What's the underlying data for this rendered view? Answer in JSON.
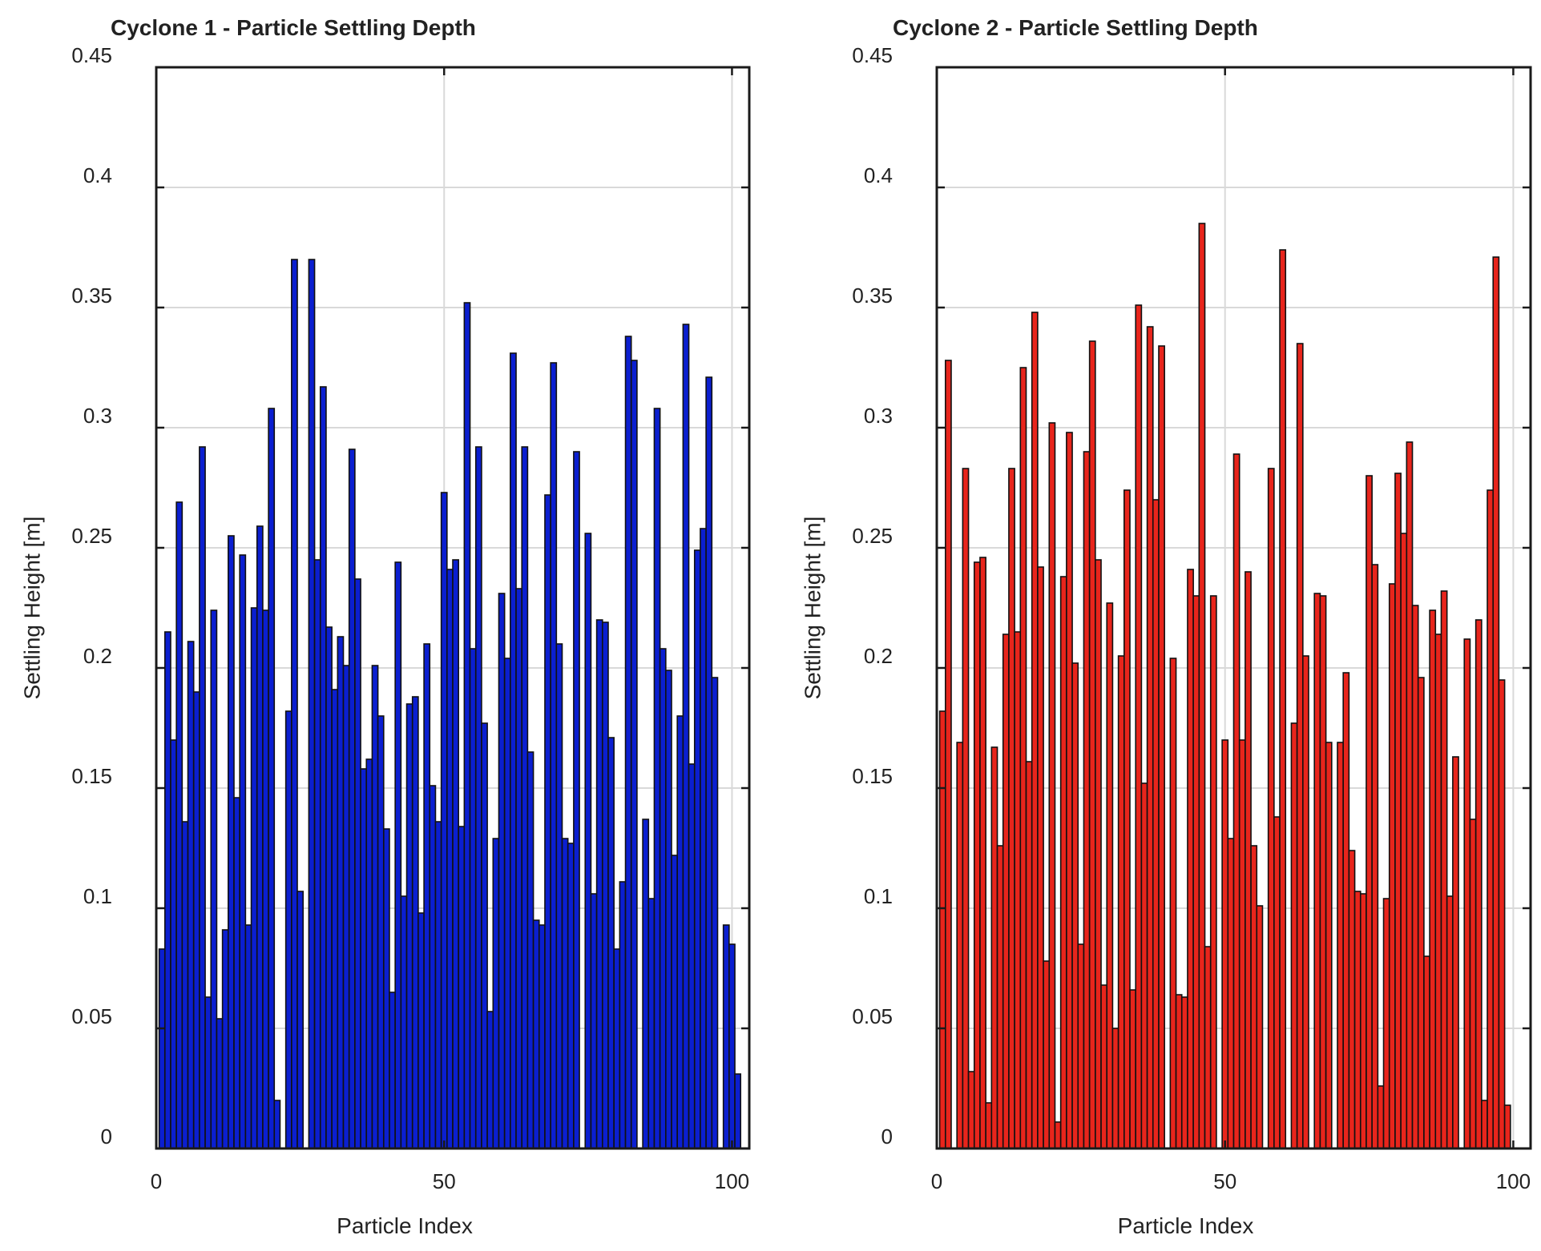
{
  "chart_data": [
    {
      "type": "bar",
      "title": "Cyclone 1 - Particle Settling Depth",
      "xlabel": "Particle Index",
      "ylabel": "Settling Height [m]",
      "xlim": [
        0,
        103
      ],
      "ylim": [
        0,
        0.45
      ],
      "xticks": [
        0,
        50,
        100
      ],
      "xtick_labels": [
        "0",
        "50",
        "100"
      ],
      "yticks": [
        0,
        0.05,
        0.1,
        0.15,
        0.2,
        0.25,
        0.3,
        0.35,
        0.4,
        0.45
      ],
      "ytick_labels": [
        "0",
        "0.05",
        "0.1",
        "0.15",
        "0.2",
        "0.25",
        "0.3",
        "0.35",
        "0.4",
        "0.45"
      ],
      "grid": true,
      "bar_color": "#0b1fd0",
      "edge_color": "#111111",
      "categories": [
        1,
        2,
        3,
        4,
        5,
        6,
        7,
        8,
        9,
        10,
        11,
        12,
        13,
        14,
        15,
        16,
        17,
        18,
        19,
        20,
        21,
        22,
        23,
        24,
        25,
        26,
        27,
        28,
        29,
        30,
        31,
        32,
        33,
        34,
        35,
        36,
        37,
        38,
        39,
        40,
        41,
        42,
        43,
        44,
        45,
        46,
        47,
        48,
        49,
        50,
        51,
        52,
        53,
        54,
        55,
        56,
        57,
        58,
        59,
        60,
        61,
        62,
        63,
        64,
        65,
        66,
        67,
        68,
        69,
        70,
        71,
        72,
        73,
        74,
        75,
        76,
        77,
        78,
        79,
        80,
        81,
        82,
        83,
        84,
        85,
        86,
        87,
        88,
        89,
        90,
        91,
        92,
        93,
        94,
        95,
        96,
        97,
        98,
        99,
        100,
        101,
        102
      ],
      "values": [
        0.083,
        0.215,
        0.17,
        0.269,
        0.136,
        0.211,
        0.19,
        0.292,
        0.063,
        0.224,
        0.054,
        0.091,
        0.255,
        0.146,
        0.247,
        0.093,
        0.225,
        0.259,
        0.224,
        0.308,
        0.02,
        0.0,
        0.182,
        0.37,
        0.107,
        0.0,
        0.37,
        0.245,
        0.317,
        0.217,
        0.191,
        0.213,
        0.201,
        0.291,
        0.237,
        0.158,
        0.162,
        0.201,
        0.18,
        0.133,
        0.065,
        0.244,
        0.105,
        0.185,
        0.188,
        0.098,
        0.21,
        0.151,
        0.136,
        0.273,
        0.241,
        0.245,
        0.134,
        0.352,
        0.208,
        0.292,
        0.177,
        0.057,
        0.129,
        0.231,
        0.204,
        0.331,
        0.233,
        0.292,
        0.165,
        0.095,
        0.093,
        0.272,
        0.327,
        0.21,
        0.129,
        0.127,
        0.29,
        0.0,
        0.256,
        0.106,
        0.22,
        0.219,
        0.171,
        0.083,
        0.111,
        0.338,
        0.328,
        0.0,
        0.137,
        0.104,
        0.308,
        0.208,
        0.199,
        0.122,
        0.18,
        0.343,
        0.16,
        0.249,
        0.258,
        0.321,
        0.196,
        0.0,
        0.093,
        0.085,
        0.031,
        0.0
      ]
    },
    {
      "type": "bar",
      "title": "Cyclone 2 - Particle Settling Depth",
      "xlabel": "Particle Index",
      "ylabel": "Settling Height [m]",
      "xlim": [
        0,
        103
      ],
      "ylim": [
        0,
        0.45
      ],
      "xticks": [
        0,
        50,
        100
      ],
      "xtick_labels": [
        "0",
        "50",
        "100"
      ],
      "yticks": [
        0,
        0.05,
        0.1,
        0.15,
        0.2,
        0.25,
        0.3,
        0.35,
        0.4,
        0.45
      ],
      "ytick_labels": [
        "0",
        "0.05",
        "0.1",
        "0.15",
        "0.2",
        "0.25",
        "0.3",
        "0.35",
        "0.4",
        "0.45"
      ],
      "grid": true,
      "bar_color": "#e8251c",
      "edge_color": "#111111",
      "categories": [
        1,
        2,
        3,
        4,
        5,
        6,
        7,
        8,
        9,
        10,
        11,
        12,
        13,
        14,
        15,
        16,
        17,
        18,
        19,
        20,
        21,
        22,
        23,
        24,
        25,
        26,
        27,
        28,
        29,
        30,
        31,
        32,
        33,
        34,
        35,
        36,
        37,
        38,
        39,
        40,
        41,
        42,
        43,
        44,
        45,
        46,
        47,
        48,
        49,
        50,
        51,
        52,
        53,
        54,
        55,
        56,
        57,
        58,
        59,
        60,
        61,
        62,
        63,
        64,
        65,
        66,
        67,
        68,
        69,
        70,
        71,
        72,
        73,
        74,
        75,
        76,
        77,
        78,
        79,
        80,
        81,
        82,
        83,
        84,
        85,
        86,
        87,
        88,
        89,
        90,
        91,
        92,
        93,
        94,
        95,
        96,
        97,
        98,
        99,
        100,
        101,
        102
      ],
      "values": [
        0.182,
        0.328,
        0.0,
        0.169,
        0.283,
        0.032,
        0.244,
        0.246,
        0.019,
        0.167,
        0.126,
        0.214,
        0.283,
        0.215,
        0.325,
        0.161,
        0.348,
        0.242,
        0.078,
        0.302,
        0.011,
        0.238,
        0.298,
        0.202,
        0.085,
        0.29,
        0.336,
        0.245,
        0.068,
        0.227,
        0.05,
        0.205,
        0.274,
        0.066,
        0.351,
        0.152,
        0.342,
        0.27,
        0.334,
        0.0,
        0.204,
        0.064,
        0.063,
        0.241,
        0.23,
        0.385,
        0.084,
        0.23,
        0.0,
        0.17,
        0.129,
        0.289,
        0.17,
        0.24,
        0.126,
        0.101,
        0.0,
        0.283,
        0.138,
        0.374,
        0.0,
        0.177,
        0.335,
        0.205,
        0.0,
        0.231,
        0.23,
        0.169,
        0.0,
        0.169,
        0.198,
        0.124,
        0.107,
        0.106,
        0.28,
        0.243,
        0.026,
        0.104,
        0.235,
        0.281,
        0.256,
        0.294,
        0.226,
        0.196,
        0.08,
        0.224,
        0.214,
        0.232,
        0.105,
        0.163,
        0.0,
        0.212,
        0.137,
        0.22,
        0.02,
        0.274,
        0.371,
        0.195,
        0.018,
        0.0,
        0.0,
        0.0
      ]
    }
  ]
}
